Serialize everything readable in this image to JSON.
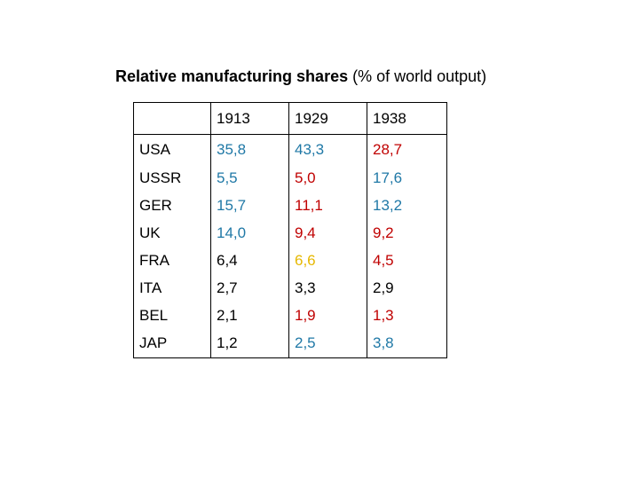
{
  "title": {
    "bold_part": "Relative manufacturing shares",
    "normal_part": "(% of world output)"
  },
  "colors": {
    "black": "#000000",
    "blue": "#1f78a6",
    "red": "#c00000",
    "yellow": "#e6b800"
  },
  "table": {
    "headers": [
      "",
      "1913",
      "1929",
      "1938"
    ],
    "rows": [
      {
        "label": "USA",
        "cells": [
          {
            "v": "35,8",
            "c": "blue"
          },
          {
            "v": "43,3",
            "c": "blue"
          },
          {
            "v": "28,7",
            "c": "red"
          }
        ]
      },
      {
        "label": "USSR",
        "cells": [
          {
            "v": "5,5",
            "c": "blue"
          },
          {
            "v": "5,0",
            "c": "red"
          },
          {
            "v": "17,6",
            "c": "blue"
          }
        ]
      },
      {
        "label": "GER",
        "cells": [
          {
            "v": "15,7",
            "c": "blue"
          },
          {
            "v": "11,1",
            "c": "red"
          },
          {
            "v": "13,2",
            "c": "blue"
          }
        ]
      },
      {
        "label": "UK",
        "cells": [
          {
            "v": "14,0",
            "c": "blue"
          },
          {
            "v": "9,4",
            "c": "red"
          },
          {
            "v": "9,2",
            "c": "red"
          }
        ]
      },
      {
        "label": "FRA",
        "cells": [
          {
            "v": "6,4",
            "c": "black"
          },
          {
            "v": "6,6",
            "c": "yellow"
          },
          {
            "v": "4,5",
            "c": "red"
          }
        ]
      },
      {
        "label": "ITA",
        "cells": [
          {
            "v": "2,7",
            "c": "black"
          },
          {
            "v": "3,3",
            "c": "black"
          },
          {
            "v": "2,9",
            "c": "black"
          }
        ]
      },
      {
        "label": "BEL",
        "cells": [
          {
            "v": "2,1",
            "c": "black"
          },
          {
            "v": "1,9",
            "c": "red"
          },
          {
            "v": "1,3",
            "c": "red"
          }
        ]
      },
      {
        "label": "JAP",
        "cells": [
          {
            "v": "1,2",
            "c": "black"
          },
          {
            "v": "2,5",
            "c": "blue"
          },
          {
            "v": "3,8",
            "c": "blue"
          }
        ]
      }
    ]
  }
}
